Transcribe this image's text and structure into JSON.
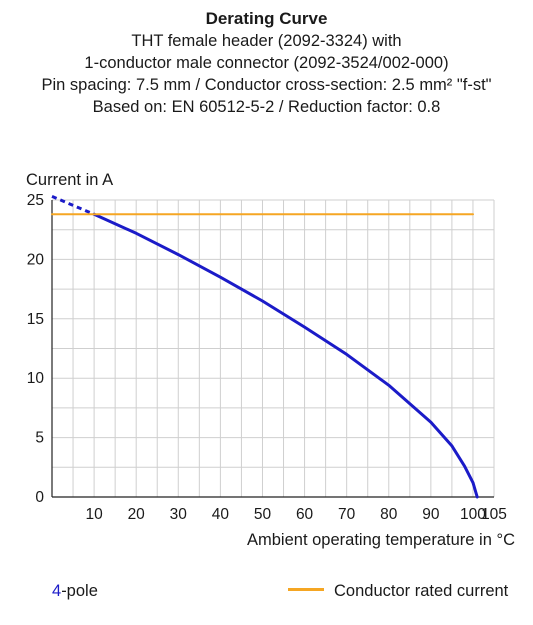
{
  "chart_data": {
    "type": "line",
    "title": "Derating Curve",
    "subtitle_lines": [
      "THT female header (2092-3324) with",
      "1-conductor male connector (2092-3524/002-000)",
      "Pin spacing: 7.5 mm / Conductor cross-section: 2.5 mm² \"f-st\"",
      "Based on: EN 60512-5-2 / Reduction factor: 0.8"
    ],
    "ylabel": "Current in A",
    "xlabel": "Ambient operating temperature in °C",
    "xlim": [
      0,
      105
    ],
    "ylim": [
      0,
      25
    ],
    "xticks": [
      10,
      20,
      30,
      40,
      50,
      60,
      70,
      80,
      90,
      100,
      105
    ],
    "yticks": [
      0,
      5,
      10,
      15,
      20,
      25
    ],
    "grid": true,
    "series": [
      {
        "name": "4-pole",
        "color": "#1b1bc8",
        "dashed_segment": {
          "x": [
            0,
            10
          ],
          "y": [
            25.3,
            23.8
          ]
        },
        "x": [
          10,
          20,
          30,
          40,
          50,
          60,
          70,
          80,
          90,
          95,
          98,
          100,
          101
        ],
        "y": [
          23.8,
          22.2,
          20.4,
          18.5,
          16.5,
          14.3,
          12.0,
          9.4,
          6.3,
          4.3,
          2.6,
          1.2,
          0
        ]
      },
      {
        "name": "Conductor rated current",
        "color": "#f5a623",
        "x": [
          0,
          100
        ],
        "y": [
          23.8,
          23.8
        ]
      }
    ],
    "legend": {
      "pole_number": "4",
      "pole_suffix": "-pole",
      "rated_label": "Conductor rated current"
    }
  }
}
